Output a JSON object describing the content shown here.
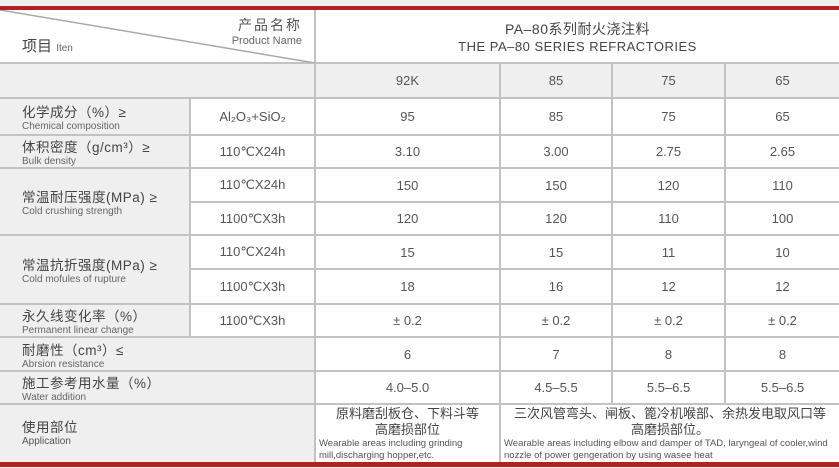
{
  "header": {
    "product_name_cn": "产品名称",
    "product_name_en": "Product Name",
    "item_cn": "项目",
    "item_en": "Iten",
    "title_cn": "PA–80系列耐火浇注料",
    "title_en": "THE PA–80 SERIES REFRACTORIES"
  },
  "grades": [
    "92K",
    "85",
    "75",
    "65"
  ],
  "rows": [
    {
      "cn": "化学成分（%）≥",
      "en": "Chemical composition",
      "cond": "Al₂O₃+SiO₂",
      "values": [
        "95",
        "85",
        "75",
        "65"
      ]
    },
    {
      "cn": "体积密度（g/cm³）≥",
      "en": "Bulk density",
      "cond": "110℃X24h",
      "values": [
        "3.10",
        "3.00",
        "2.75",
        "2.65"
      ]
    },
    {
      "cn": "常温耐压强度(MPa) ≥",
      "en": "Cold crushing strength",
      "cond": "110℃X24h",
      "values": [
        "150",
        "150",
        "120",
        "110"
      ],
      "cond2": "1100℃X3h",
      "values2": [
        "120",
        "120",
        "110",
        "100"
      ]
    },
    {
      "cn": "常温抗折强度(MPa) ≥",
      "en": "Cold mofules of rupture",
      "cond": "110℃X24h",
      "values": [
        "15",
        "15",
        "11",
        "10"
      ],
      "cond2": "1100℃X3h",
      "values2": [
        "18",
        "16",
        "12",
        "12"
      ]
    },
    {
      "cn": "永久线变化率（%）",
      "en": "Permanent linear change",
      "cond": "1100℃X3h",
      "values": [
        "± 0.2",
        "± 0.2",
        "± 0.2",
        "± 0.2"
      ]
    },
    {
      "cn": "耐磨性（cm³）≤",
      "en": "Abrsion resistance",
      "values": [
        "6",
        "7",
        "8",
        "8"
      ]
    },
    {
      "cn": "施工参考用水量（%）",
      "en": "Water addition",
      "values": [
        "4.0–5.0",
        "4.5–5.5",
        "5.5–6.5",
        "5.5–6.5"
      ]
    }
  ],
  "application": {
    "cn": "使用部位",
    "en": "Application",
    "a_cn": "原料磨刮板仓、下料斗等高磨损部位",
    "a_en": "Wearable areas including grinding mill,discharging hopper,etc.",
    "b_cn": "三次风管弯头、闸板、篦冷机喉部、余热发电取风口等高磨损部位。",
    "b_en": "Wearable areas including elbow and damper of TAD, laryngeal of cooler,wind nozzle of power gengeration by using wasee heat"
  },
  "colors": {
    "accent": "#b32024",
    "border": "#c2c2c2",
    "label_bg": "#efefef"
  }
}
